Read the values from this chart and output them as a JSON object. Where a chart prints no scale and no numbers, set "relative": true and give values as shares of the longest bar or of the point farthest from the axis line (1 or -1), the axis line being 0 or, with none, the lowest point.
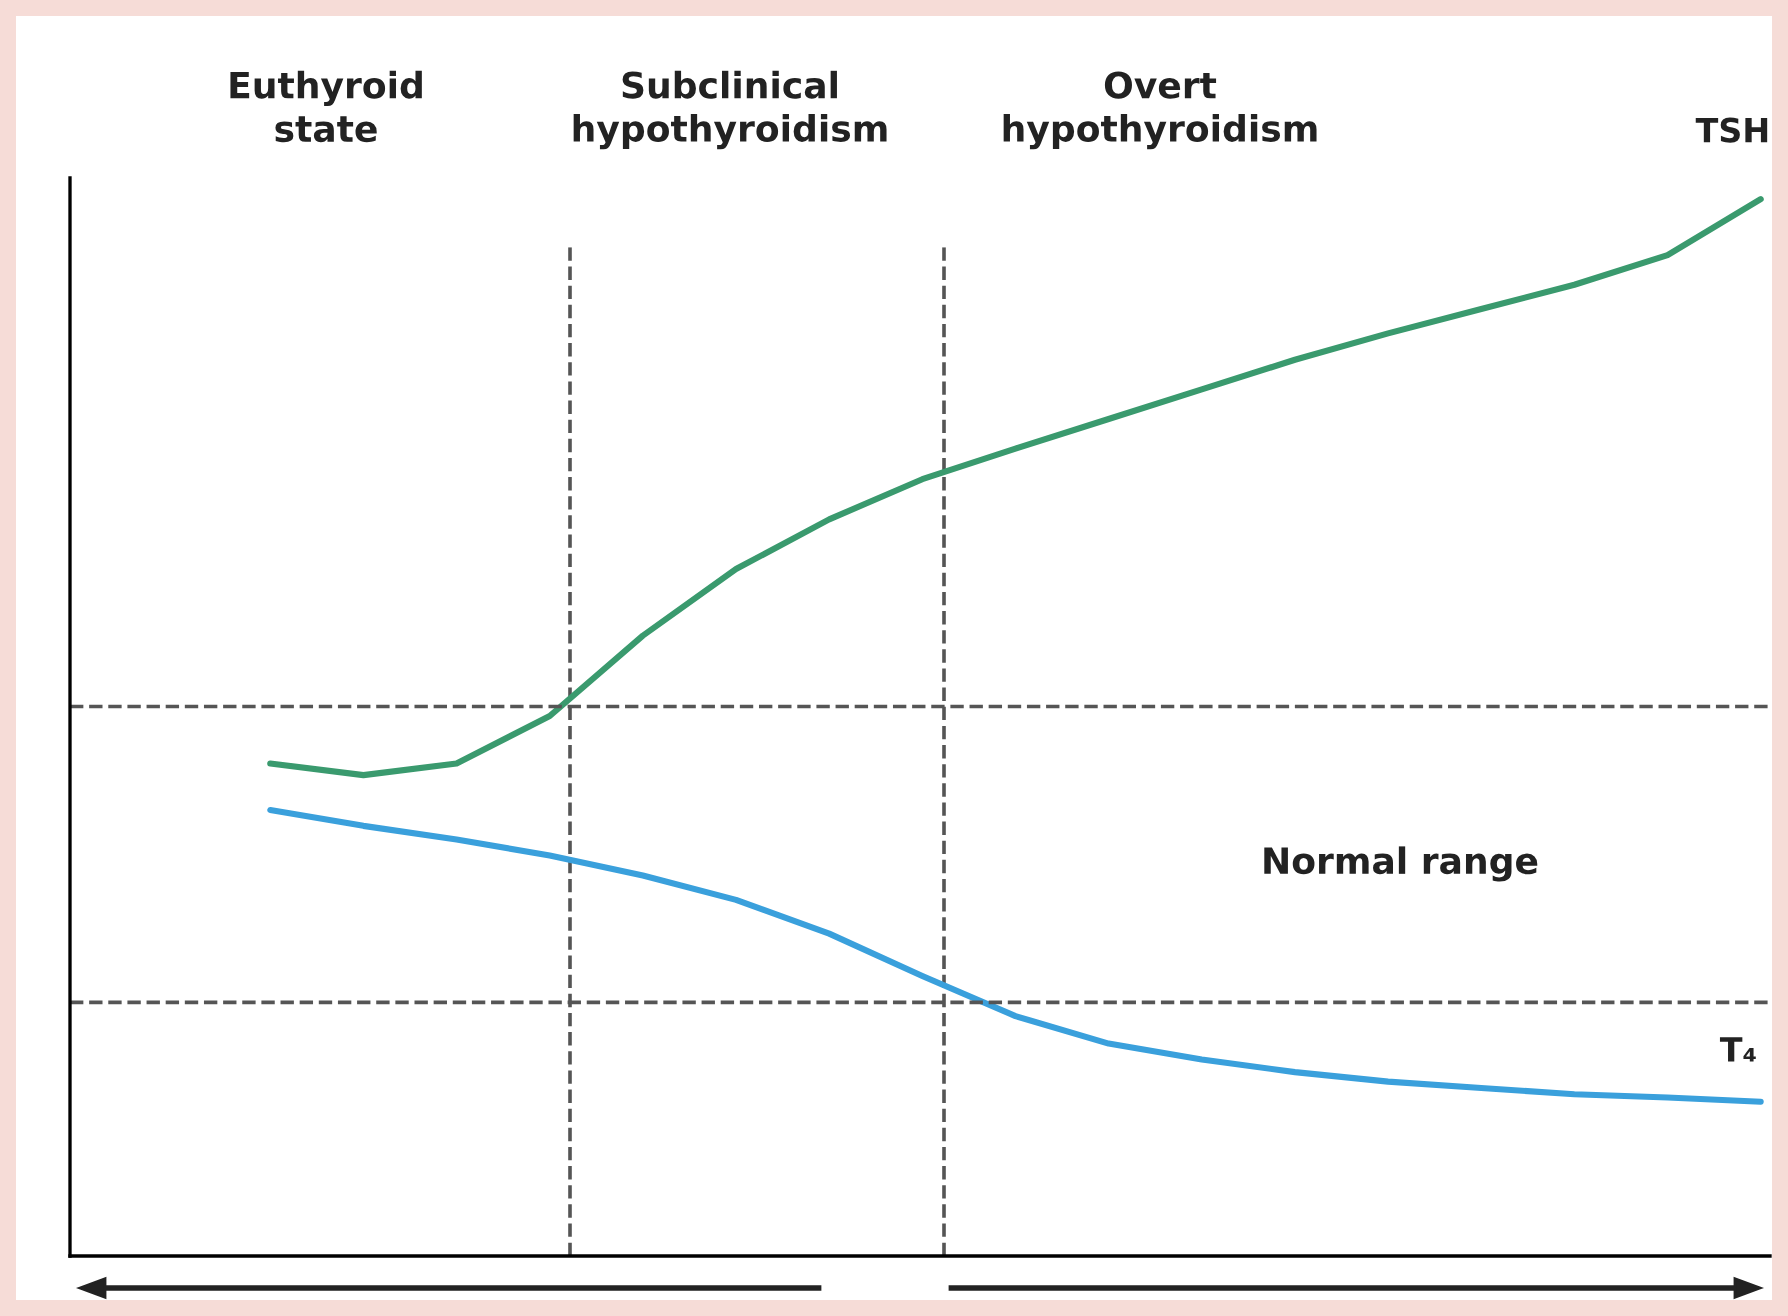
{
  "chart_data": {
    "type": "line",
    "relative": true,
    "categories": [
      null,
      null,
      null,
      null,
      null,
      null,
      null,
      null,
      null,
      null,
      null,
      null,
      null,
      null,
      null,
      null,
      null
    ],
    "series": [
      {
        "name": "TSH",
        "color": "#3a9a6e",
        "values": [
          0.466,
          0.455,
          0.466,
          0.511,
          0.587,
          0.65,
          0.697,
          0.735,
          0.764,
          0.792,
          0.82,
          0.848,
          0.873,
          0.896,
          0.919,
          0.947,
          1.0
        ]
      },
      {
        "name": "T₄",
        "color": "#3aa0dc",
        "values": [
          0.422,
          0.407,
          0.394,
          0.379,
          0.36,
          0.337,
          0.305,
          0.265,
          0.227,
          0.201,
          0.186,
          0.174,
          0.165,
          0.159,
          0.153,
          0.15,
          0.146
        ]
      }
    ],
    "ref_lines": [
      {
        "axis": "y",
        "value": 0.52,
        "color": "#555555",
        "line_style": "dashed"
      },
      {
        "axis": "y",
        "value": 0.24,
        "color": "#555555",
        "line_style": "dashed"
      }
    ],
    "annotations": [
      "Euthyroid\nstate",
      "Subclinical\nhypothyroidism",
      "Overt\nhypothyroidism",
      "Normal range"
    ],
    "grid": false,
    "legend": false,
    "marker": "none",
    "line_style": "solid"
  }
}
